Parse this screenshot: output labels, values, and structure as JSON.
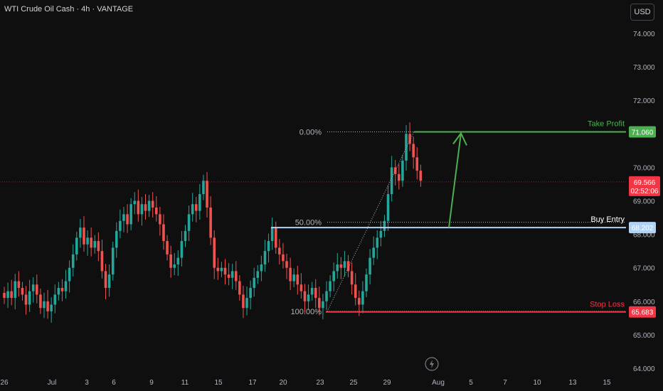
{
  "header": {
    "symbol_title": "WTI Crude Oil Cash · 4h · VANTAGE",
    "currency_button": "USD"
  },
  "colors": {
    "background": "#0f0f0f",
    "up": "#26a69a",
    "down": "#ef5350",
    "take_profit": "#4caf50",
    "buy_entry": "#b2d3f5",
    "stop_loss": "#f23645",
    "last_price": "#f23645"
  },
  "price_axis": {
    "labels": [
      "74.000",
      "73.000",
      "72.000",
      "70.000",
      "69.000",
      "68.000",
      "67.000",
      "66.000",
      "65.000",
      "64.000"
    ]
  },
  "time_axis": {
    "labels": [
      "26",
      "Jul",
      "3",
      "6",
      "9",
      "11",
      "15",
      "17",
      "20",
      "23",
      "25",
      "29",
      "Aug",
      "5",
      "7",
      "10",
      "13",
      "15"
    ]
  },
  "fib_levels": [
    {
      "label": "0.00%",
      "price": 71.06
    },
    {
      "label": "50.00%",
      "price": 68.36
    },
    {
      "label": "100.00%",
      "price": 65.7
    }
  ],
  "levels": {
    "take_profit": {
      "label": "Take Profit",
      "price_text": "71.060",
      "price": 71.06
    },
    "buy_entry": {
      "label": "Buy Entry",
      "price_text": "68.202",
      "price": 68.202
    },
    "stop_loss": {
      "label": "Stop Loss",
      "price_text": "65.683",
      "price": 65.683
    }
  },
  "last_price": {
    "price_text": "69.566",
    "countdown": "02:52:06",
    "price": 69.566
  },
  "chart_data": {
    "type": "candlestick",
    "close_series": [
      66.1,
      66.3,
      66.1,
      66.6,
      66.4,
      66.2,
      65.9,
      66.3,
      66.5,
      66.2,
      65.8,
      66.0,
      65.7,
      65.9,
      66.2,
      66.4,
      66.3,
      66.6,
      67.0,
      67.4,
      67.9,
      68.2,
      67.7,
      67.9,
      67.6,
      67.8,
      67.5,
      66.9,
      66.4,
      66.8,
      67.6,
      68.1,
      68.4,
      68.6,
      68.3,
      68.9,
      69.0,
      68.6,
      68.9,
      68.7,
      69.0,
      68.8,
      68.6,
      68.3,
      67.8,
      67.4,
      67.0,
      67.1,
      67.3,
      67.8,
      68.1,
      68.6,
      68.9,
      68.7,
      69.2,
      69.6,
      68.8,
      67.9,
      67.0,
      66.9,
      67.0,
      66.8,
      66.7,
      66.9,
      66.6,
      66.2,
      65.8,
      66.1,
      66.4,
      66.7,
      66.9,
      67.1,
      67.5,
      67.8,
      68.2,
      67.6,
      67.4,
      67.2,
      67.0,
      66.6,
      66.8,
      66.5,
      66.3,
      66.0,
      66.2,
      66.4,
      66.1,
      65.8,
      66.0,
      66.3,
      66.6,
      66.9,
      67.1,
      67.0,
      67.2,
      66.9,
      66.5,
      66.1,
      65.9,
      66.3,
      66.8,
      67.3,
      67.6,
      67.9,
      68.1,
      68.4,
      69.2,
      70.0,
      69.8,
      69.6,
      70.2,
      71.0,
      70.7,
      70.3,
      69.9,
      69.6
    ]
  }
}
